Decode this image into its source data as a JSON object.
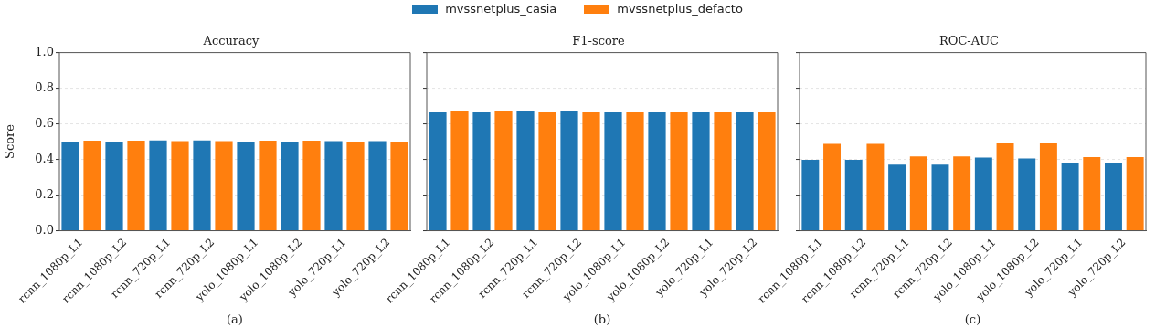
{
  "chart_data": [
    {
      "type": "bar",
      "title": "Accuracy",
      "ylabel": "Score",
      "categories": [
        "rcnn_1080p_L1",
        "rcnn_1080p_L2",
        "rcnn_720p_L1",
        "rcnn_720p_L2",
        "yolo_1080p_L1",
        "yolo_1080p_L2",
        "yolo_720p_L1",
        "yolo_720p_L2"
      ],
      "series": [
        {
          "name": "mvssnetplus_casia",
          "color": "#1f77b4",
          "values": [
            0.5,
            0.5,
            0.507,
            0.507,
            0.5,
            0.5,
            0.503,
            0.503
          ]
        },
        {
          "name": "mvssnetplus_defacto",
          "color": "#ff7f0e",
          "values": [
            0.505,
            0.505,
            0.503,
            0.503,
            0.505,
            0.505,
            0.5,
            0.5
          ]
        }
      ],
      "ylim": [
        0,
        1
      ],
      "yticks": [
        {
          "value": 0,
          "label": "0.0"
        },
        0.2,
        0.4,
        0.6,
        0.8,
        {
          "value": 1,
          "label": "1.0"
        }
      ],
      "grid": "y",
      "legend": "top",
      "annotations": [
        "(a)"
      ]
    },
    {
      "type": "bar",
      "title": "F1-score",
      "categories": [
        "rcnn_1080p_L1",
        "rcnn_1080p_L2",
        "rcnn_720p_L1",
        "rcnn_720p_L2",
        "yolo_1080p_L1",
        "yolo_1080p_L2",
        "yolo_720p_L1",
        "yolo_720p_L2"
      ],
      "series": [
        {
          "color": "#1f77b4",
          "values": [
            0.665,
            0.665,
            0.669,
            0.669,
            0.665,
            0.665,
            0.665,
            0.665
          ]
        },
        {
          "color": "#ff7f0e",
          "values": [
            0.669,
            0.669,
            0.665,
            0.665,
            0.665,
            0.665,
            0.665,
            0.665
          ]
        }
      ],
      "ylim": [
        0,
        1
      ],
      "yticks": [
        {
          "value": 0,
          "label": null
        },
        {
          "value": 0.2,
          "label": null
        },
        {
          "value": 0.4,
          "label": null
        },
        {
          "value": 0.6,
          "label": null
        },
        {
          "value": 0.8,
          "label": null
        },
        {
          "value": 1,
          "label": null
        }
      ],
      "grid": "y",
      "tick_labels": "x",
      "annotations": [
        "(b)"
      ]
    },
    {
      "type": "bar",
      "title": "ROC-AUC",
      "categories": [
        "rcnn_1080p_L1",
        "rcnn_1080p_L2",
        "rcnn_720p_L1",
        "rcnn_720p_L2",
        "yolo_1080p_L1",
        "yolo_1080p_L2",
        "yolo_720p_L1",
        "yolo_720p_L2"
      ],
      "series": [
        {
          "color": "#1f77b4",
          "values": [
            0.398,
            0.398,
            0.371,
            0.371,
            0.41,
            0.406,
            0.383,
            0.383
          ]
        },
        {
          "color": "#ff7f0e",
          "values": [
            0.488,
            0.488,
            0.417,
            0.417,
            0.491,
            0.491,
            0.413,
            0.413
          ]
        }
      ],
      "ylim": [
        0,
        1
      ],
      "yticks": [
        {
          "value": 0,
          "label": null
        },
        {
          "value": 0.2,
          "label": null
        },
        {
          "value": 0.4,
          "label": null
        },
        {
          "value": 0.6,
          "label": null
        },
        {
          "value": 0.8,
          "label": null
        },
        {
          "value": 1,
          "label": null
        }
      ],
      "grid": "y",
      "tick_labels": "x",
      "annotations": [
        "(c)"
      ]
    }
  ]
}
